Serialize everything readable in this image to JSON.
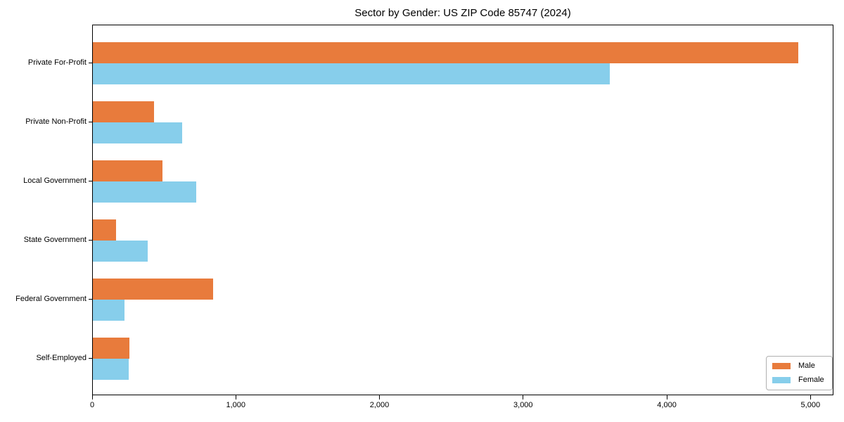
{
  "chart_data": {
    "type": "bar",
    "orientation": "horizontal",
    "title": "Sector by Gender: US ZIP Code 85747 (2024)",
    "categories": [
      "Private For-Profit",
      "Private Non-Profit",
      "Local Government",
      "State Government",
      "Federal Government",
      "Self-Employed"
    ],
    "series": [
      {
        "name": "Male",
        "color": "#e87b3c",
        "values": [
          4910,
          425,
          485,
          160,
          835,
          255
        ]
      },
      {
        "name": "Female",
        "color": "#87ceeb",
        "values": [
          3600,
          620,
          720,
          380,
          220,
          250
        ]
      }
    ],
    "xlabel": "",
    "ylabel": "",
    "xlim": [
      0,
      5160
    ],
    "xticks": [
      0,
      1000,
      2000,
      3000,
      4000,
      5000
    ],
    "xtick_labels": [
      "0",
      "1,000",
      "2,000",
      "3,000",
      "4,000",
      "5,000"
    ],
    "grid": false,
    "legend_position": "lower right",
    "background_color": "#ffffff"
  }
}
